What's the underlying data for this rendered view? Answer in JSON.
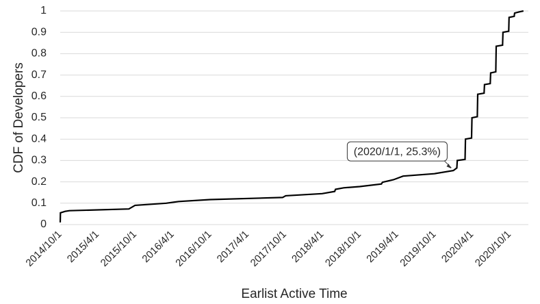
{
  "chart_data": {
    "type": "line",
    "ylabel": "CDF of Developers",
    "xlabel": "Earlist Active Time",
    "x": [
      "2014/10/1",
      "2014/10/2",
      "2014/10/25",
      "2014/11/15",
      "2015/9/1",
      "2015/10/1",
      "2016/3/1",
      "2016/5/1",
      "2016/10/1",
      "2017/9/20",
      "2017/10/5",
      "2018/4/1",
      "2018/6/1",
      "2018/6/5",
      "2018/7/15",
      "2018/10/1",
      "2019/1/15",
      "2019/1/20",
      "2019/3/15",
      "2019/5/1",
      "2019/10/1",
      "2020/1/1",
      "2020/1/18",
      "2020/1/20",
      "2020/2/27",
      "2020/2/29",
      "2020/3/30",
      "2020/4/1",
      "2020/4/27",
      "2020/4/29",
      "2020/5/30",
      "2020/6/1",
      "2020/6/29",
      "2020/7/1",
      "2020/7/26",
      "2020/7/28",
      "2020/8/28",
      "2020/8/30",
      "2020/9/27",
      "2020/9/29",
      "2020/10/24",
      "2020/10/26",
      "2020/11/15",
      "2020/12/8"
    ],
    "values": [
      0.01,
      0.055,
      0.062,
      0.065,
      0.073,
      0.09,
      0.1,
      0.108,
      0.117,
      0.127,
      0.135,
      0.145,
      0.155,
      0.165,
      0.172,
      0.178,
      0.19,
      0.198,
      0.21,
      0.227,
      0.238,
      0.253,
      0.265,
      0.3,
      0.305,
      0.4,
      0.405,
      0.5,
      0.505,
      0.61,
      0.615,
      0.655,
      0.66,
      0.71,
      0.715,
      0.835,
      0.84,
      0.9,
      0.905,
      0.97,
      0.975,
      0.99,
      0.995,
      1
    ],
    "color": "#000000",
    "xlim": [
      "2014/10/1",
      "2021/1/1"
    ],
    "xticks": [
      "2014/10/1",
      "2015/4/1",
      "2015/10/1",
      "2016/4/1",
      "2016/10/1",
      "2017/4/1",
      "2017/10/1",
      "2018/4/1",
      "2018/10/1",
      "2019/4/1",
      "2019/10/1",
      "2020/4/1",
      "2020/10/1"
    ],
    "ylim": [
      0,
      1
    ],
    "yticks": [
      0,
      0.1,
      0.2,
      0.3,
      0.4,
      0.5,
      0.6,
      0.7,
      0.8,
      0.9,
      1
    ],
    "grid": true,
    "annotations": [
      {
        "text": "(2020/1/1, 25.3%)",
        "x": "2020/1/1",
        "y": 0.253
      }
    ]
  }
}
